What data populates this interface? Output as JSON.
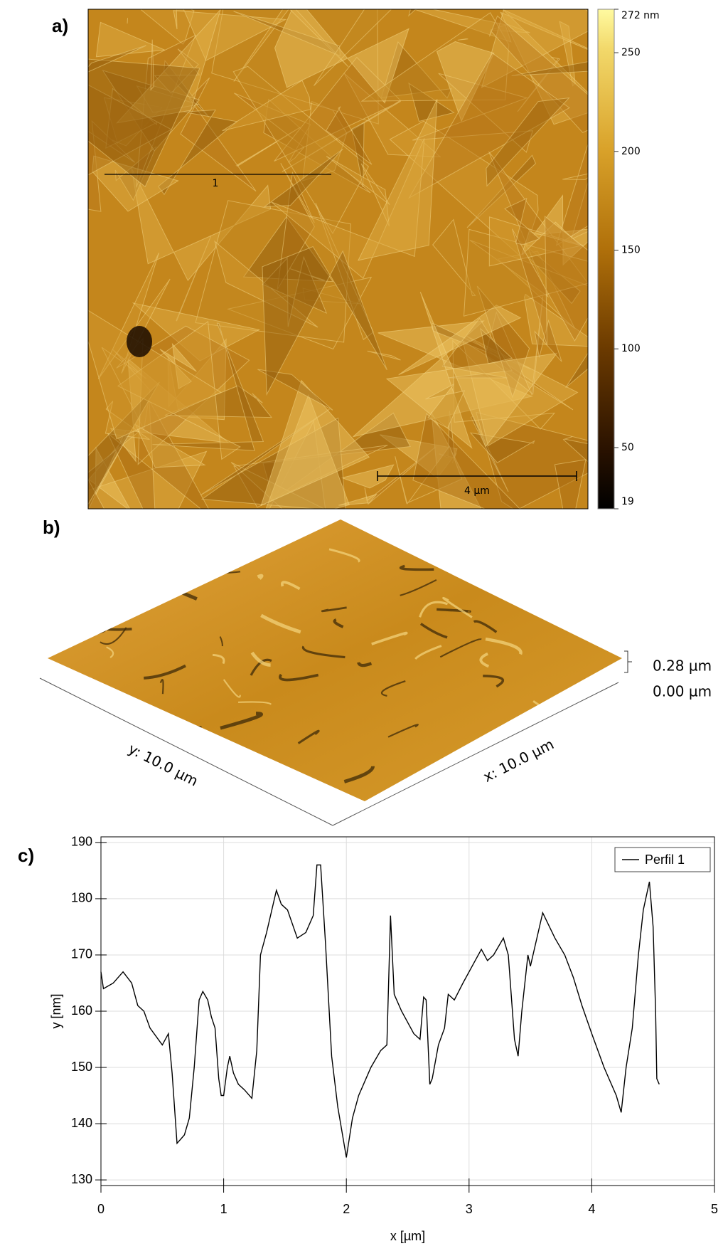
{
  "panels": {
    "a": {
      "label": "a)",
      "profile_label": "1",
      "scale_bar": "4 µm",
      "colorbar": {
        "range": [
          19,
          272
        ],
        "ticks": [
          {
            "value": 272,
            "label": "272 nm"
          },
          250,
          200,
          150,
          100,
          50,
          19
        ]
      }
    },
    "b": {
      "label": "b)",
      "z_max": "0.28 µm",
      "z_min": "0.00 µm",
      "y_axis": "y: 10.0 µm",
      "x_axis": "x: 10.0 µm"
    },
    "c": {
      "label": "c)"
    }
  },
  "chart_data": {
    "type": "line",
    "xlabel": "x [µm]",
    "ylabel": "y [nm]",
    "x": [
      0,
      0.02,
      0.1,
      0.18,
      0.25,
      0.3,
      0.35,
      0.4,
      0.5,
      0.55,
      0.58,
      0.62,
      0.68,
      0.72,
      0.76,
      0.8,
      0.83,
      0.87,
      0.9,
      0.93,
      0.96,
      0.98,
      1.0,
      1.03,
      1.05,
      1.08,
      1.12,
      1.17,
      1.23,
      1.27,
      1.3,
      1.35,
      1.43,
      1.47,
      1.52,
      1.6,
      1.67,
      1.73,
      1.76,
      1.79,
      1.83,
      1.88,
      1.93,
      2.0,
      2.05,
      2.1,
      2.2,
      2.28,
      2.33,
      2.36,
      2.39,
      2.45,
      2.55,
      2.6,
      2.63,
      2.65,
      2.68,
      2.7,
      2.75,
      2.8,
      2.83,
      2.88,
      2.95,
      3.05,
      3.1,
      3.15,
      3.2,
      3.28,
      3.32,
      3.37,
      3.4,
      3.43,
      3.48,
      3.5,
      3.6,
      3.7,
      3.78,
      3.85,
      3.92,
      4.0,
      4.1,
      4.2,
      4.24,
      4.28,
      4.33,
      4.38,
      4.42,
      4.47,
      4.5,
      4.52,
      4.53,
      4.55
    ],
    "series": [
      {
        "name": "Perfil 1",
        "color": "#000000",
        "values": [
          167,
          164,
          165,
          167,
          165,
          161,
          160,
          157,
          154,
          156,
          149,
          136.5,
          138,
          141,
          150,
          162,
          163.5,
          162,
          159,
          157,
          148,
          145,
          145,
          150,
          152,
          149,
          147,
          146,
          144.5,
          153,
          170,
          174,
          181.5,
          179,
          178,
          173,
          174,
          177,
          186,
          186,
          172,
          152,
          143,
          134,
          141,
          145,
          150,
          153,
          154,
          177,
          163,
          160,
          156,
          155,
          162.5,
          162,
          147,
          148,
          154,
          157,
          163,
          162,
          165,
          169,
          171,
          169,
          170,
          173,
          170,
          155,
          152,
          160,
          170,
          168,
          177.5,
          173,
          170,
          166,
          161,
          156,
          150,
          145,
          142,
          150,
          157,
          170,
          178,
          183,
          175,
          160,
          148,
          147
        ]
      }
    ],
    "xlim": [
      0,
      5
    ],
    "ylim": [
      129,
      191
    ],
    "xticks": [
      0,
      1,
      2,
      3,
      4,
      5
    ],
    "yticks": [
      130,
      140,
      150,
      160,
      170,
      180,
      190
    ],
    "grid": true,
    "legend": "upper right"
  }
}
